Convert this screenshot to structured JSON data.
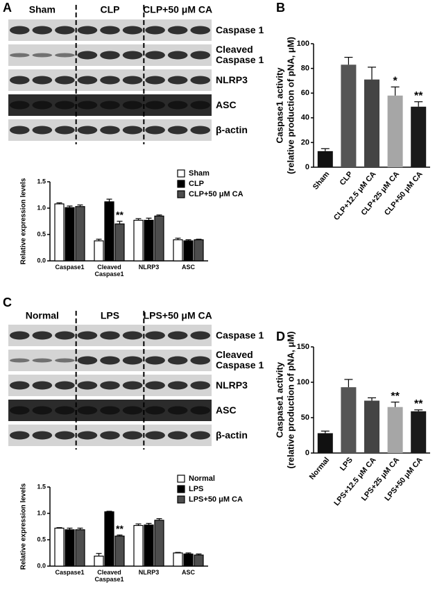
{
  "panel_labels": [
    "A",
    "B",
    "C",
    "D"
  ],
  "blots": [
    {
      "groups": [
        "Sham",
        "CLP",
        "CLP+50 μM CA"
      ],
      "rows": [
        "Caspase 1",
        "Cleaved Caspase 1",
        "NLRP3",
        "ASC",
        "β-actin"
      ]
    },
    {
      "groups": [
        "Normal",
        "LPS",
        "LPS+50 μM CA"
      ],
      "rows": [
        "Caspase 1",
        "Cleaved Caspase 1",
        "NLRP3",
        "ASC",
        "β-actin"
      ]
    }
  ],
  "chart_data": [
    {
      "type": "grouped-bar",
      "ylabel": "Relative expression levels",
      "categories": [
        "Caspase1",
        "Cleaved Caspase1",
        "NLRP3",
        "ASC"
      ],
      "series": [
        {
          "name": "Sham",
          "color": "#ffffff",
          "values": [
            1.08,
            0.38,
            0.77,
            0.4
          ],
          "errors": [
            0.02,
            0.03,
            0.03,
            0.03
          ],
          "significance": [
            null,
            null,
            null,
            null
          ]
        },
        {
          "name": "CLP",
          "color": "#000000",
          "values": [
            1.01,
            1.12,
            0.77,
            0.38
          ],
          "errors": [
            0.03,
            0.05,
            0.04,
            0.02
          ],
          "significance": [
            null,
            null,
            null,
            null
          ]
        },
        {
          "name": "CLP+50 μM CA",
          "color": "#4d4d4d",
          "values": [
            1.03,
            0.7,
            0.85,
            0.4
          ],
          "errors": [
            0.03,
            0.05,
            0.02,
            0.01
          ],
          "significance": [
            null,
            "**",
            null,
            null
          ]
        }
      ],
      "ylim": [
        0,
        1.5
      ],
      "yticks": [
        {
          "value": 0,
          "label": "0.0"
        },
        0.5,
        {
          "value": 1,
          "label": "1.0"
        },
        1.5
      ],
      "legend": "upper right"
    },
    {
      "type": "bar",
      "ylabel": [
        "Caspase1 activity",
        "(relative production of pNA, μM)"
      ],
      "categories": [
        "Sham",
        "CLP",
        "CLP+12.5 μM CA",
        "CLP+25 μM CA",
        "CLP+50 μM CA"
      ],
      "values": [
        13,
        83,
        71,
        58,
        49
      ],
      "errors": [
        2,
        6,
        10,
        7,
        4
      ],
      "colors": [
        "#111111",
        "#555555",
        "#444444",
        "#a6a6a6",
        "#1a1a1a"
      ],
      "significance": [
        null,
        null,
        null,
        "*",
        "**"
      ],
      "ylim": [
        0,
        100
      ],
      "yticks": [
        0,
        20,
        40,
        60,
        80,
        100
      ]
    },
    {
      "type": "grouped-bar",
      "ylabel": "Relative expression levels",
      "categories": [
        "Caspase1",
        "Cleaved Caspase1",
        "NLRP3",
        "ASC"
      ],
      "series": [
        {
          "name": "Normal",
          "color": "#ffffff",
          "values": [
            0.72,
            0.19,
            0.77,
            0.25
          ],
          "errors": [
            0.01,
            0.05,
            0.03,
            0.01
          ],
          "significance": [
            null,
            null,
            null,
            null
          ]
        },
        {
          "name": "LPS",
          "color": "#000000",
          "values": [
            0.69,
            1.03,
            0.78,
            0.23
          ],
          "errors": [
            0.03,
            0.01,
            0.03,
            0.02
          ],
          "significance": [
            null,
            null,
            null,
            null
          ]
        },
        {
          "name": "LPS+50 μM CA",
          "color": "#4d4d4d",
          "values": [
            0.69,
            0.57,
            0.87,
            0.21
          ],
          "errors": [
            0.03,
            0.02,
            0.03,
            0.02
          ],
          "significance": [
            null,
            "**",
            null,
            null
          ]
        }
      ],
      "ylim": [
        0,
        1.5
      ],
      "yticks": [
        {
          "value": 0,
          "label": "0.0"
        },
        0.5,
        {
          "value": 1,
          "label": "1.0"
        },
        1.5
      ],
      "legend": "upper right"
    },
    {
      "type": "bar",
      "ylabel": [
        "Caspase1 activity",
        "(relative production of pNA, μM)"
      ],
      "categories": [
        "Normal",
        "LPS",
        "LPS+12.5 μM CA",
        "LPS+25 μM CA",
        "LPS+50 μM CA"
      ],
      "values": [
        28,
        93,
        74,
        65,
        59
      ],
      "errors": [
        3,
        11,
        4,
        7,
        2
      ],
      "colors": [
        "#111111",
        "#555555",
        "#444444",
        "#a6a6a6",
        "#1a1a1a"
      ],
      "significance": [
        null,
        null,
        null,
        "**",
        "**"
      ],
      "ylim": [
        0,
        150
      ],
      "yticks": [
        0,
        50,
        100,
        150
      ]
    }
  ]
}
